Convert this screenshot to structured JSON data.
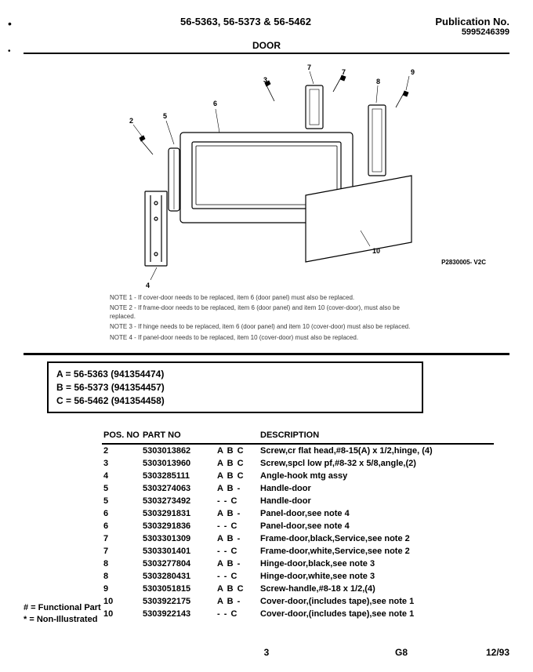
{
  "header": {
    "models_title": "56-5363, 56-5373 & 56-5462",
    "pub_label": "Publication No.",
    "pub_no": "5995246399"
  },
  "section_title": "DOOR",
  "figure_code": "P2830005- V2C",
  "notes": [
    "NOTE 1 - If cover-door needs to be replaced, item 6 (door panel) must also be replaced.",
    "NOTE 2 - If frame-door needs to be replaced, item 6 (door panel) and item 10 (cover-door), must also be replaced.",
    "NOTE 3 - If hinge needs to be replaced, item 6 (door panel) and item 10 (cover-door) must also be replaced.",
    "NOTE 4 - If panel-door needs to be replaced, item 10 (cover-door) must also be replaced."
  ],
  "model_box": {
    "a": "A  = 56-5363 (941354474)",
    "b": "B  = 56-5373 (941354457)",
    "c": "C  = 56-5462 (941354458)"
  },
  "table": {
    "headers": {
      "pos": "POS. NO",
      "part": "PART NO",
      "desc": "DESCRIPTION"
    },
    "rows": [
      {
        "pos": "2",
        "part": "5303013862",
        "mods": "A B C",
        "desc": "Screw,cr flat head,#8-15(A) x 1/2,hinge, (4)"
      },
      {
        "pos": "3",
        "part": "5303013960",
        "mods": "A B C",
        "desc": "Screw,spcl low pf,#8-32 x 5/8,angle,(2)"
      },
      {
        "pos": "4",
        "part": "5303285111",
        "mods": "A B C",
        "desc": "Angle-hook mtg assy"
      },
      {
        "pos": "5",
        "part": "5303274063",
        "mods": "A B -",
        "desc": "Handle-door"
      },
      {
        "pos": "5",
        "part": "5303273492",
        "mods": "- - C",
        "desc": "Handle-door"
      },
      {
        "pos": "6",
        "part": "5303291831",
        "mods": "A B -",
        "desc": "Panel-door,see note 4"
      },
      {
        "pos": "6",
        "part": "5303291836",
        "mods": "- - C",
        "desc": "Panel-door,see note 4"
      },
      {
        "pos": "7",
        "part": "5303301309",
        "mods": "A B -",
        "desc": "Frame-door,black,Service,see note 2"
      },
      {
        "pos": "7",
        "part": "5303301401",
        "mods": "- - C",
        "desc": "Frame-door,white,Service,see note 2"
      },
      {
        "pos": "8",
        "part": "5303277804",
        "mods": "A B -",
        "desc": "Hinge-door,black,see note 3"
      },
      {
        "pos": "8",
        "part": "5303280431",
        "mods": "- - C",
        "desc": "Hinge-door,white,see note 3"
      },
      {
        "pos": "9",
        "part": "5303051815",
        "mods": "A B C",
        "desc": "Screw-handle,#8-18 x 1/2,(4)"
      },
      {
        "pos": "10",
        "part": "5303922175",
        "mods": "A B -",
        "desc": "Cover-door,(includes tape),see note 1"
      },
      {
        "pos": "10",
        "part": "5303922143",
        "mods": "- - C",
        "desc": "Cover-door,(includes tape),see note 1"
      }
    ]
  },
  "legend": {
    "l1": "# = Functional Part",
    "l2": "*  = Non-Illustrated"
  },
  "footer": {
    "page": "3",
    "code": "G8",
    "date": "12/93"
  },
  "callouts": [
    "2",
    "3",
    "4",
    "5",
    "6",
    "7",
    "8",
    "9",
    "10"
  ]
}
